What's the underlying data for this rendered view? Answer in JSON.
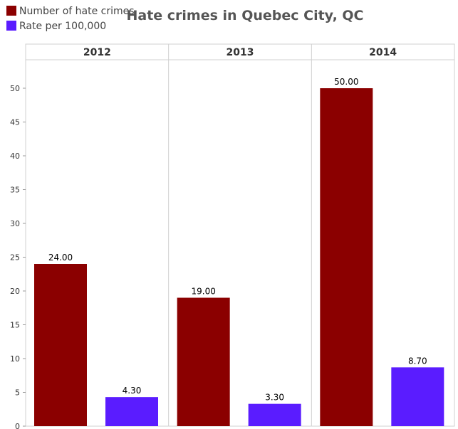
{
  "chart_data": {
    "type": "bar",
    "title": "Hate crimes in Quebec City, QC",
    "categories": [
      "2012",
      "2013",
      "2014"
    ],
    "series": [
      {
        "name": "Number of hate crimes",
        "color": "#8b0000",
        "values": [
          24.0,
          19.0,
          50.0
        ],
        "labels": [
          "24.00",
          "19.00",
          "50.00"
        ]
      },
      {
        "name": "Rate per 100,000",
        "color": "#5a1cff",
        "values": [
          4.3,
          3.3,
          8.7
        ],
        "labels": [
          "4.30",
          "3.30",
          "8.70"
        ]
      }
    ],
    "ylim": [
      0,
      55
    ],
    "yticks": [
      0,
      5,
      10,
      15,
      20,
      25,
      30,
      35,
      40,
      45,
      50
    ],
    "grid": false,
    "legend_position": "top-left"
  }
}
